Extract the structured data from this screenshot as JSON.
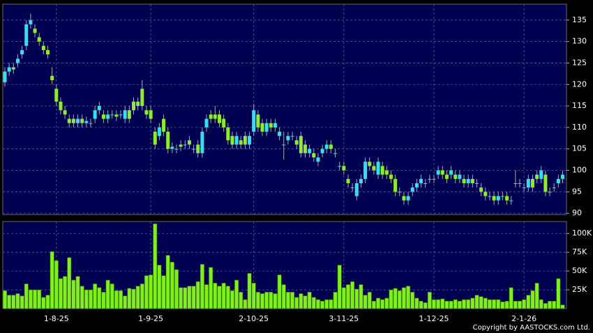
{
  "chart_data": [
    {
      "type": "candlestick",
      "categories": [
        null,
        null,
        null,
        null,
        null,
        null,
        null,
        null,
        null,
        null,
        null,
        null,
        "1-8-25",
        null,
        null,
        null,
        null,
        null,
        null,
        null,
        null,
        null,
        null,
        null,
        null,
        null,
        null,
        null,
        null,
        null,
        null,
        null,
        null,
        null,
        "1-9-25",
        null,
        null,
        null,
        null,
        null,
        null,
        null,
        null,
        null,
        null,
        null,
        null,
        null,
        null,
        null,
        null,
        null,
        null,
        null,
        null,
        null,
        null,
        null,
        "2-10-25",
        null,
        null,
        null,
        null,
        null,
        null,
        null,
        null,
        null,
        null,
        null,
        null,
        null,
        null,
        null,
        null,
        null,
        null,
        null,
        null,
        "3-11-25",
        null,
        null,
        null,
        null,
        null,
        null,
        null,
        null,
        null,
        null,
        null,
        null,
        null,
        null,
        null,
        null,
        null,
        null,
        null,
        null,
        "1-12-25",
        null,
        null,
        null,
        null,
        null,
        null,
        null,
        null,
        null,
        null,
        null,
        null,
        null,
        null,
        null,
        null,
        null,
        null,
        null,
        null,
        "2-1-26",
        null,
        null,
        null,
        null,
        null,
        null,
        null,
        null,
        null
      ],
      "open": [
        120.5,
        123,
        124,
        125,
        127,
        129,
        134,
        133,
        131,
        129,
        128,
        122,
        119,
        116,
        114,
        112,
        112,
        111,
        112,
        111,
        111,
        112,
        114,
        113,
        112,
        113,
        113,
        113,
        112,
        114,
        116,
        116,
        119,
        114,
        114,
        109,
        108,
        112,
        109,
        105,
        105,
        106,
        106,
        107,
        105,
        106,
        104,
        110,
        113,
        113,
        113,
        112,
        110,
        108,
        106,
        107,
        108,
        106,
        109,
        113,
        111,
        109,
        111,
        110,
        108,
        106,
        107,
        108,
        107,
        108,
        106,
        104,
        104,
        102,
        104,
        105,
        106,
        104,
        101,
        101,
        98,
        96,
        94,
        97,
        98,
        102,
        101,
        99,
        101,
        100,
        99,
        98,
        95,
        94,
        93,
        95,
        96,
        97,
        97,
        98,
        98,
        99,
        100,
        99,
        99,
        99,
        98,
        98,
        97,
        98,
        97,
        96,
        95,
        94,
        94,
        93,
        94,
        94,
        93,
        97,
        97,
        96,
        96,
        98,
        99,
        98,
        99,
        95,
        96,
        97,
        98
      ],
      "high": [
        124,
        125,
        125,
        127,
        129,
        135,
        136.5,
        134,
        132,
        130,
        129,
        124,
        120,
        117,
        115,
        113,
        113,
        113,
        113,
        112.5,
        112,
        115,
        116,
        114,
        114,
        114,
        114,
        114,
        115,
        115,
        117,
        117,
        121,
        115,
        115,
        110,
        111,
        113,
        110,
        106.5,
        106,
        107,
        107,
        108,
        106,
        107,
        110,
        113,
        114,
        115,
        114,
        113,
        111,
        109,
        109,
        108,
        109,
        109,
        115.5,
        114,
        112,
        112,
        112,
        112,
        110,
        109,
        109,
        109,
        108,
        109,
        107,
        106,
        105,
        104,
        106,
        107,
        107,
        105,
        102,
        102,
        99,
        97,
        98,
        99,
        103,
        103,
        102,
        103,
        102,
        101,
        100,
        99,
        96,
        95,
        95,
        97,
        98,
        99,
        98,
        99,
        99,
        101,
        101,
        100,
        101,
        100,
        100,
        99,
        99,
        99,
        98,
        97,
        96,
        95,
        95,
        95,
        95,
        95,
        94,
        100,
        98,
        97,
        99,
        99,
        100,
        101,
        100,
        96,
        97,
        99,
        100
      ],
      "low": [
        119.5,
        122,
        122.5,
        124,
        126,
        128,
        133,
        131,
        129,
        127,
        126,
        120,
        115,
        113,
        112,
        110,
        110,
        110,
        110,
        110,
        110,
        111,
        113,
        111,
        111,
        112,
        111.5,
        112,
        111,
        111,
        113,
        114,
        114,
        112,
        111,
        105,
        107,
        108,
        104,
        104,
        104,
        104.5,
        105,
        105,
        104,
        103,
        103,
        109,
        111,
        111,
        110,
        109,
        106,
        105,
        105,
        105,
        105,
        105,
        108,
        109,
        108,
        108,
        109,
        109,
        107,
        102.5,
        106,
        107,
        105,
        103,
        103,
        103,
        102,
        101,
        103,
        104,
        104,
        103,
        100,
        99,
        96,
        95,
        93,
        96,
        97,
        100,
        99,
        98,
        98,
        98,
        97,
        94,
        94,
        92,
        92,
        94,
        95,
        96,
        96,
        97,
        97,
        98,
        98,
        97,
        98,
        97,
        97,
        96,
        96,
        96,
        96,
        94,
        93,
        93,
        92,
        92,
        93,
        92,
        92,
        96,
        96,
        95,
        95,
        95,
        97,
        97,
        94,
        94,
        95,
        96,
        97
      ],
      "close": [
        123,
        124,
        123.5,
        126,
        128,
        134,
        135,
        132,
        130,
        128,
        127,
        121,
        116,
        114,
        113,
        111,
        111,
        112,
        111,
        111.5,
        111,
        114,
        115,
        112,
        113,
        113,
        112.5,
        113,
        114,
        112,
        114,
        115,
        115,
        113,
        112,
        106,
        110,
        109,
        105,
        105.5,
        105,
        105.5,
        106,
        106,
        105,
        104,
        109,
        112,
        112,
        112,
        111,
        110,
        107,
        106,
        108,
        106,
        106,
        108,
        114,
        110,
        109,
        111,
        110,
        111,
        109,
        106,
        108,
        108,
        106,
        104,
        104,
        105,
        103,
        103,
        105,
        106,
        105,
        104,
        101,
        100,
        97,
        96,
        97,
        98,
        102,
        101,
        100,
        102,
        99,
        99,
        98,
        95,
        95,
        93,
        94,
        96,
        97,
        98,
        97,
        98,
        98,
        100,
        99,
        98,
        100,
        98,
        99,
        97,
        98,
        97,
        97,
        95,
        94,
        94,
        93,
        94,
        94,
        93,
        93,
        97,
        97,
        96,
        98,
        96,
        98,
        100,
        95,
        95,
        96,
        98,
        99
      ],
      "ylim": [
        89.7,
        138.7
      ],
      "yticks": [
        90,
        95,
        100,
        105,
        110,
        115,
        120,
        125,
        130,
        135
      ],
      "up_color": "#33e0f0",
      "down_color": "#8ced2a",
      "grid": true
    },
    {
      "type": "bar",
      "values": [
        24000,
        18000,
        18000,
        20000,
        17000,
        33000,
        25000,
        25000,
        25000,
        15000,
        18000,
        76000,
        64000,
        40000,
        43000,
        68000,
        38000,
        43000,
        30000,
        25000,
        25000,
        33000,
        28000,
        22000,
        38000,
        33000,
        24000,
        24000,
        17000,
        27000,
        26000,
        30000,
        33000,
        44000,
        45000,
        113000,
        58000,
        44000,
        71000,
        62000,
        52000,
        28000,
        28000,
        30000,
        30000,
        36000,
        59000,
        32000,
        55000,
        34000,
        30000,
        34000,
        30000,
        24000,
        38000,
        22000,
        12000,
        47000,
        34000,
        22000,
        20000,
        22000,
        22000,
        20000,
        45000,
        32000,
        22000,
        22000,
        15000,
        20000,
        17000,
        22000,
        15000,
        12000,
        10000,
        12000,
        12000,
        22000,
        58000,
        28000,
        32000,
        36000,
        26000,
        32000,
        18000,
        22000,
        10000,
        14000,
        12000,
        14000,
        25000,
        27000,
        24000,
        28000,
        30000,
        22000,
        14000,
        10000,
        8000,
        22000,
        12000,
        12000,
        13000,
        10000,
        10000,
        12000,
        10000,
        12000,
        12000,
        14000,
        18000,
        16000,
        14000,
        12000,
        12000,
        12000,
        9000,
        10000,
        28000,
        10000,
        10000,
        12000,
        18000,
        24000,
        34000,
        12000,
        7000,
        10000,
        10000,
        40000,
        5000
      ],
      "ylim": [
        0,
        116000
      ],
      "yticks": [
        {
          "value": 25000,
          "label": "25K"
        },
        {
          "value": 50000,
          "label": "50K"
        },
        {
          "value": 75000,
          "label": "75K"
        },
        {
          "value": 100000,
          "label": "100K"
        }
      ],
      "color": "#7ff01c",
      "grid": true
    }
  ],
  "copyright": "Copyright by AASTOCKS.com Ltd."
}
